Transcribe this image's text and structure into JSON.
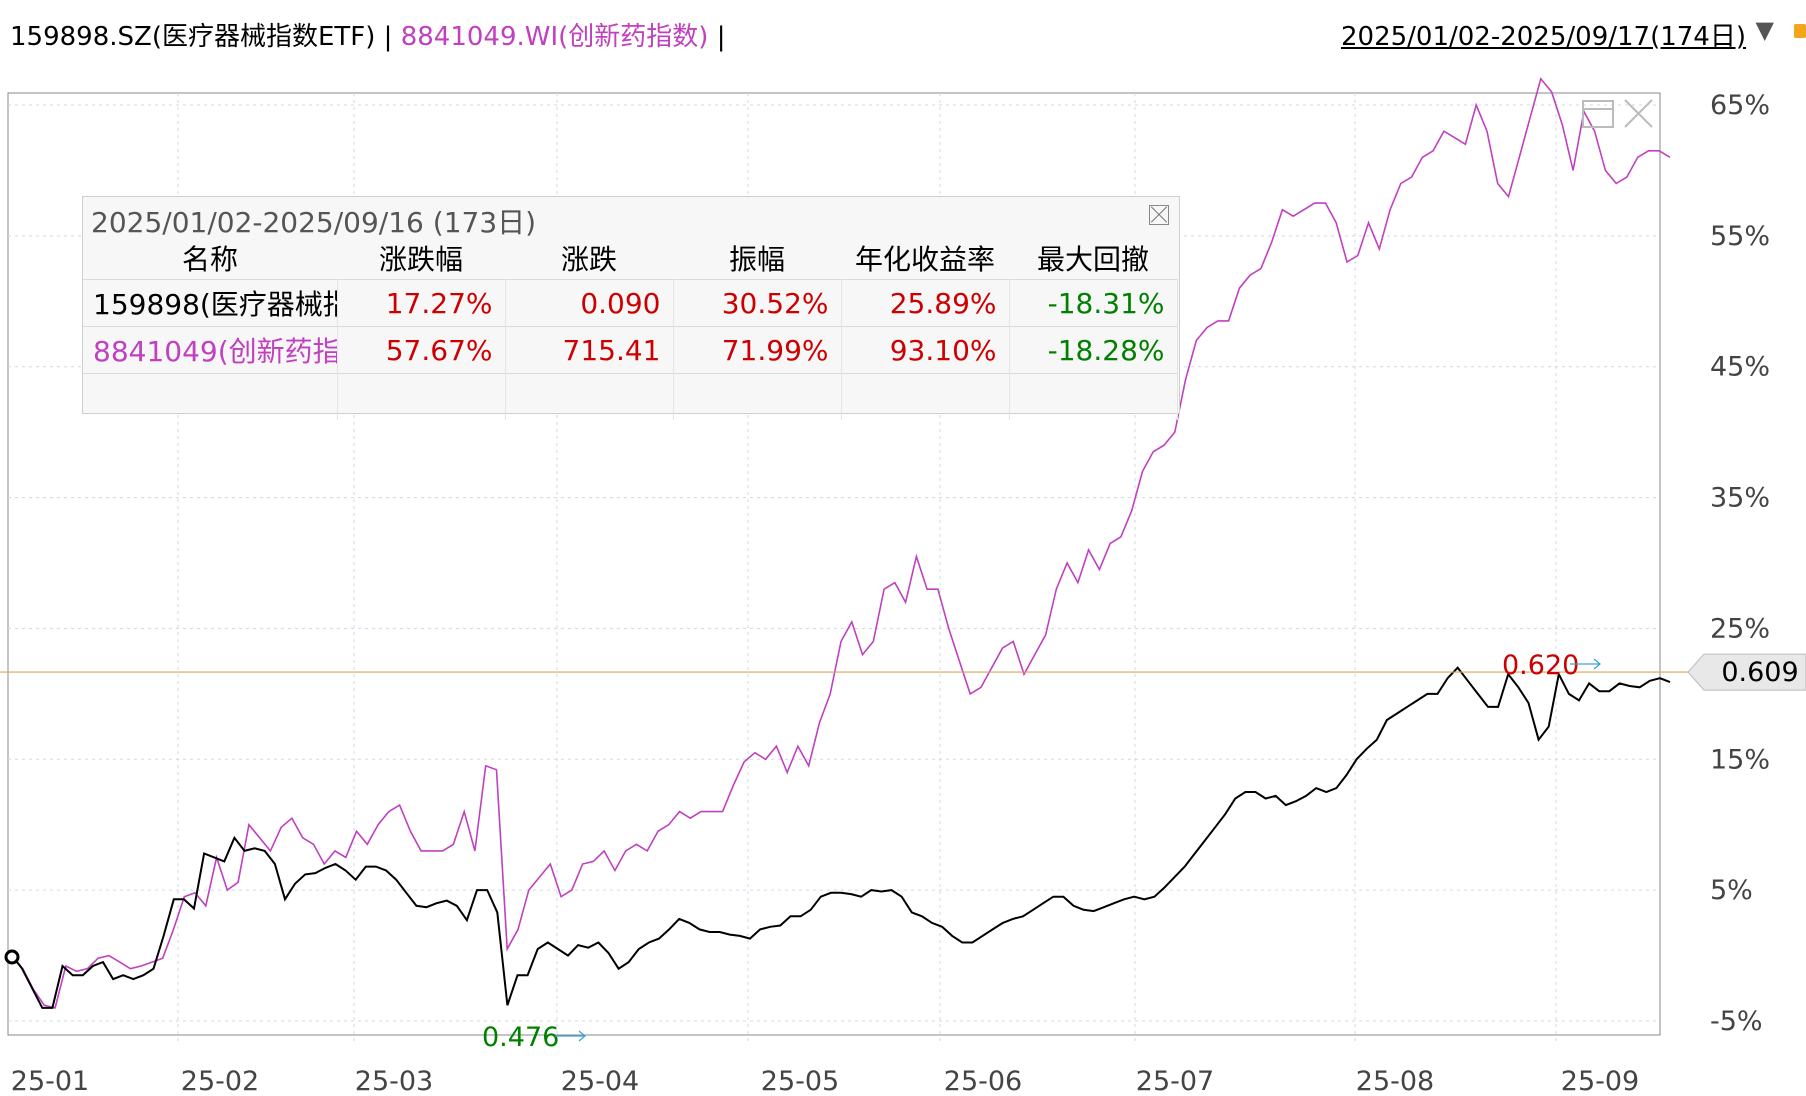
{
  "header": {
    "ticker1": "159898.SZ(医疗器械指数ETF)",
    "separator": "|",
    "ticker2": "8841049.WI(创新药指数)",
    "range_label": "2025/01/02-2025/09/17(174日)"
  },
  "stats_panel": {
    "title": "2025/01/02-2025/09/16 (173日)",
    "columns": [
      "名称",
      "涨跌幅",
      "涨跌",
      "振幅",
      "年化收益率",
      "最大回撤"
    ],
    "rows": [
      {
        "name": "159898(医疗器械指",
        "change_pct": "17.27%",
        "change": "0.090",
        "amplitude": "30.52%",
        "annualized": "25.89%",
        "max_drawdown": "-18.31%"
      },
      {
        "name": "8841049(创新药指数",
        "change_pct": "57.67%",
        "change": "715.41",
        "amplitude": "71.99%",
        "annualized": "93.10%",
        "max_drawdown": "-18.28%"
      }
    ]
  },
  "colors": {
    "series1": "#000000",
    "series2": "#c040c0",
    "price_line": "#d9a55a",
    "positive": "#cc0000",
    "negative": "#008000",
    "grid": "#cfd8e6"
  },
  "chart_data": {
    "type": "line",
    "x_tick_labels": [
      "25-01",
      "25-02",
      "25-03",
      "25-04",
      "25-05",
      "25-06",
      "25-07",
      "25-08",
      "25-09"
    ],
    "y_tick_labels": [
      "65%",
      "55%",
      "45%",
      "35%",
      "25%",
      "15%",
      "5%",
      "-5%"
    ],
    "ylim_pct": [
      -5,
      65
    ],
    "current_price_label": "0.609",
    "max_label": "0.620",
    "min_label": "0.476",
    "series": [
      {
        "pct": [
          0.0,
          -1.0,
          -2.5,
          -4.0,
          -4.0,
          -0.8,
          -1.5,
          -1.5,
          -0.8,
          -0.5,
          -1.8,
          -1.5,
          -1.8,
          -1.5,
          -1.0,
          1.5,
          4.3,
          4.3,
          3.6,
          7.8,
          7.5,
          7.2,
          9.0,
          8.0,
          8.2,
          8.0,
          7.0,
          4.3,
          5.5,
          6.2,
          6.3,
          6.7,
          7.0,
          6.5,
          5.8,
          6.8,
          6.8,
          6.5,
          5.8,
          4.8,
          3.8,
          3.7,
          4.0,
          4.2,
          3.8,
          2.7,
          5.0,
          5.0,
          3.3,
          -3.8,
          -1.5,
          -1.5,
          0.5,
          1.0,
          0.5,
          0.0,
          0.8,
          0.6,
          1.0,
          0.2,
          -1.0,
          -0.5,
          0.5,
          1.0,
          1.3,
          2.0,
          2.8,
          2.5,
          2.0,
          1.8,
          1.8,
          1.6,
          1.5,
          1.3,
          2.0,
          2.2,
          2.3,
          3.0,
          3.0,
          3.5,
          4.5,
          4.8,
          4.8,
          4.7,
          4.5,
          5.0,
          4.9,
          5.0,
          4.5,
          3.3,
          3.0,
          2.5,
          2.2,
          1.5,
          1.0,
          1.0,
          1.5,
          2.0,
          2.5,
          2.8,
          3.0,
          3.5,
          4.0,
          4.5,
          4.5,
          3.8,
          3.5,
          3.4,
          3.7,
          4.0,
          4.3,
          4.5,
          4.3,
          4.5,
          5.2,
          6.0,
          6.8,
          7.8,
          8.8,
          9.8,
          10.8,
          12.0,
          12.5,
          12.5,
          12.0,
          12.2,
          11.5,
          11.8,
          12.2,
          12.8,
          12.5,
          12.8,
          13.8,
          15.0,
          15.8,
          16.5,
          18.0,
          18.5,
          19.0,
          19.5,
          20.0,
          20.0,
          21.2,
          22.0,
          21.0,
          20.0,
          19.0,
          19.0,
          21.5,
          20.5,
          19.3,
          16.5,
          17.5,
          21.5,
          20.0,
          19.5,
          20.8,
          20.2,
          20.2,
          20.8,
          20.6,
          20.5,
          21.0,
          21.2,
          20.9
        ]
      },
      {
        "pct": [
          0.0,
          -1.0,
          -2.6,
          -3.8,
          -4.0,
          -0.8,
          -1.2,
          -1.0,
          -0.2,
          0.0,
          -0.5,
          -1.0,
          -0.8,
          -0.5,
          -0.2,
          2.0,
          4.5,
          4.8,
          3.8,
          7.5,
          5.0,
          5.6,
          10.0,
          9.0,
          8.0,
          9.8,
          10.5,
          9.0,
          8.5,
          7.0,
          8.0,
          7.5,
          9.5,
          8.5,
          10.0,
          11.0,
          11.5,
          9.5,
          8.0,
          8.0,
          8.0,
          8.5,
          11.0,
          8.0,
          14.5,
          14.2,
          0.5,
          2.0,
          5.0,
          6.0,
          7.0,
          4.5,
          5.0,
          7.0,
          7.2,
          8.0,
          6.5,
          8.0,
          8.5,
          8.0,
          9.5,
          10.0,
          11.0,
          10.5,
          11.0,
          11.0,
          11.0,
          13.0,
          14.8,
          15.5,
          15.0,
          16.0,
          14.0,
          16.0,
          14.5,
          17.8,
          20.0,
          24.0,
          25.5,
          23.0,
          24.0,
          28.0,
          28.5,
          27.0,
          30.5,
          28.0,
          28.0,
          25.0,
          22.5,
          20.0,
          20.5,
          22.0,
          23.5,
          24.0,
          21.5,
          23.0,
          24.5,
          28.0,
          30.0,
          28.5,
          31.0,
          29.5,
          31.5,
          32.0,
          34.0,
          37.0,
          38.5,
          39.0,
          40.0,
          44.0,
          47.0,
          48.0,
          48.5,
          48.5,
          51.0,
          52.0,
          52.5,
          54.5,
          57.0,
          56.5,
          57.0,
          57.5,
          57.5,
          56.0,
          53.0,
          53.5,
          56.0,
          54.0,
          57.0,
          59.0,
          59.5,
          61.0,
          61.5,
          63.0,
          62.5,
          62.0,
          65.0,
          63.0,
          59.0,
          58.0,
          61.0,
          64.0,
          67.0,
          66.0,
          63.5,
          60.0,
          64.5,
          63.0,
          60.0,
          59.0,
          59.5,
          61.0,
          61.5,
          61.5,
          61.0
        ]
      }
    ]
  }
}
